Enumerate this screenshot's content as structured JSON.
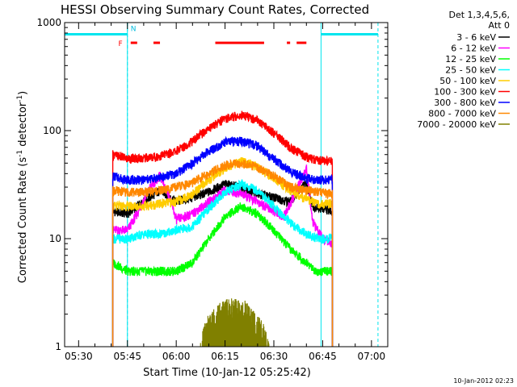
{
  "chart_data": {
    "type": "line",
    "title": "HESSI Observing Summary Count Rates, Corrected",
    "xlabel": "Start Time (10-Jan-12 05:25:42)",
    "ylabel_main": "Corrected Count Rate (s",
    "ylabel_sup1": "-1",
    "ylabel_mid": " detector",
    "ylabel_sup2": "-1",
    "ylabel_end": ")",
    "x_axis": {
      "start": "05:25:42",
      "end": "07:05:00",
      "ticks": [
        {
          "label": "05:30",
          "time": "05:30"
        },
        {
          "label": "05:45",
          "time": "05:45"
        },
        {
          "label": "06:00",
          "time": "06:00"
        },
        {
          "label": "06:15",
          "time": "06:15"
        },
        {
          "label": "06:30",
          "time": "06:30"
        },
        {
          "label": "06:45",
          "time": "06:45"
        },
        {
          "label": "07:00",
          "time": "07:00"
        }
      ]
    },
    "y_axis": {
      "scale": "log",
      "range": [
        1,
        1000
      ],
      "ticks": [
        {
          "label": "1",
          "value": 1
        },
        {
          "label": "10",
          "value": 10
        },
        {
          "label": "100",
          "value": 100
        },
        {
          "label": "1000",
          "value": 1000
        }
      ]
    },
    "legend_header": [
      "Det 1,3,4,5,6,",
      "Att 0"
    ],
    "legend_position": "right, outside plot",
    "series": [
      {
        "name": "3 - 6 keV",
        "color": "#000000",
        "points": [
          [
            "05:40:30",
            18
          ],
          [
            "05:45",
            17
          ],
          [
            "05:50",
            22
          ],
          [
            "05:55",
            28
          ],
          [
            "06:00",
            22
          ],
          [
            "06:05",
            24
          ],
          [
            "06:10",
            27
          ],
          [
            "06:15",
            32
          ],
          [
            "06:20",
            30
          ],
          [
            "06:25",
            26
          ],
          [
            "06:30",
            24
          ],
          [
            "06:35",
            22
          ],
          [
            "06:40",
            33
          ],
          [
            "06:42",
            20
          ],
          [
            "06:48",
            18
          ]
        ]
      },
      {
        "name": "6 - 12 keV",
        "color": "#ff00ff",
        "points": [
          [
            "05:40:30",
            12
          ],
          [
            "05:45",
            12
          ],
          [
            "05:48",
            17
          ],
          [
            "05:52",
            30
          ],
          [
            "05:55",
            38
          ],
          [
            "05:58",
            24
          ],
          [
            "06:00",
            15
          ],
          [
            "06:05",
            17
          ],
          [
            "06:10",
            22
          ],
          [
            "06:15",
            28
          ],
          [
            "06:20",
            26
          ],
          [
            "06:25",
            22
          ],
          [
            "06:30",
            18
          ],
          [
            "06:33",
            16
          ],
          [
            "06:36",
            24
          ],
          [
            "06:40",
            45
          ],
          [
            "06:42",
            14
          ],
          [
            "06:45",
            10
          ],
          [
            "06:48",
            9
          ]
        ]
      },
      {
        "name": "12 - 25 keV",
        "color": "#00ff00",
        "points": [
          [
            "05:40:30",
            6
          ],
          [
            "05:45",
            5
          ],
          [
            "05:50",
            5
          ],
          [
            "05:55",
            5
          ],
          [
            "06:00",
            5
          ],
          [
            "06:05",
            6
          ],
          [
            "06:10",
            10
          ],
          [
            "06:15",
            16
          ],
          [
            "06:20",
            20
          ],
          [
            "06:25",
            17
          ],
          [
            "06:30",
            12
          ],
          [
            "06:35",
            8
          ],
          [
            "06:40",
            6
          ],
          [
            "06:43",
            5
          ],
          [
            "06:48",
            5
          ]
        ]
      },
      {
        "name": "25 - 50 keV",
        "color": "#00ffff",
        "points": [
          [
            "05:40:30",
            10
          ],
          [
            "05:45",
            10
          ],
          [
            "05:50",
            11
          ],
          [
            "05:55",
            11
          ],
          [
            "06:00",
            12
          ],
          [
            "06:05",
            13
          ],
          [
            "06:10",
            19
          ],
          [
            "06:15",
            27
          ],
          [
            "06:20",
            32
          ],
          [
            "06:25",
            28
          ],
          [
            "06:30",
            20
          ],
          [
            "06:35",
            14
          ],
          [
            "06:40",
            11
          ],
          [
            "06:44",
            10
          ],
          [
            "06:48",
            10
          ]
        ]
      },
      {
        "name": "50 - 100 keV",
        "color": "#ffcc00",
        "points": [
          [
            "05:40:30",
            20
          ],
          [
            "05:45",
            20
          ],
          [
            "05:50",
            20
          ],
          [
            "05:55",
            21
          ],
          [
            "06:00",
            22
          ],
          [
            "06:05",
            26
          ],
          [
            "06:10",
            35
          ],
          [
            "06:15",
            45
          ],
          [
            "06:20",
            52
          ],
          [
            "06:25",
            46
          ],
          [
            "06:30",
            36
          ],
          [
            "06:35",
            28
          ],
          [
            "06:40",
            23
          ],
          [
            "06:44",
            21
          ],
          [
            "06:48",
            21
          ]
        ]
      },
      {
        "name": "100 - 300 keV",
        "color": "#ff0000",
        "points": [
          [
            "05:40:30",
            60
          ],
          [
            "05:45",
            55
          ],
          [
            "05:50",
            56
          ],
          [
            "05:55",
            58
          ],
          [
            "06:00",
            65
          ],
          [
            "06:05",
            80
          ],
          [
            "06:10",
            105
          ],
          [
            "06:15",
            130
          ],
          [
            "06:20",
            140
          ],
          [
            "06:25",
            125
          ],
          [
            "06:30",
            95
          ],
          [
            "06:35",
            70
          ],
          [
            "06:40",
            57
          ],
          [
            "06:44",
            53
          ],
          [
            "06:48",
            52
          ]
        ]
      },
      {
        "name": "300 - 800 keV",
        "color": "#0000ff",
        "points": [
          [
            "05:40:30",
            38
          ],
          [
            "05:45",
            35
          ],
          [
            "05:50",
            35
          ],
          [
            "05:55",
            37
          ],
          [
            "06:00",
            40
          ],
          [
            "06:05",
            50
          ],
          [
            "06:10",
            65
          ],
          [
            "06:15",
            78
          ],
          [
            "06:20",
            80
          ],
          [
            "06:25",
            72
          ],
          [
            "06:30",
            55
          ],
          [
            "06:35",
            42
          ],
          [
            "06:40",
            36
          ],
          [
            "06:44",
            35
          ],
          [
            "06:48",
            35
          ]
        ]
      },
      {
        "name": "800 - 7000 keV",
        "color": "#ff8800",
        "points": [
          [
            "05:40:30",
            28
          ],
          [
            "05:45",
            27
          ],
          [
            "05:50",
            27
          ],
          [
            "05:55",
            28
          ],
          [
            "06:00",
            30
          ],
          [
            "06:05",
            33
          ],
          [
            "06:10",
            40
          ],
          [
            "06:15",
            48
          ],
          [
            "06:20",
            50
          ],
          [
            "06:25",
            46
          ],
          [
            "06:30",
            38
          ],
          [
            "06:35",
            30
          ],
          [
            "06:40",
            28
          ],
          [
            "06:44",
            27
          ],
          [
            "06:48",
            26
          ]
        ]
      },
      {
        "name": "7000 - 20000 keV",
        "color": "#808000",
        "points": [
          [
            "06:07",
            1.0
          ],
          [
            "06:09",
            1.8
          ],
          [
            "06:12",
            2.4
          ],
          [
            "06:15",
            2.8
          ],
          [
            "06:18",
            2.8
          ],
          [
            "06:21",
            2.7
          ],
          [
            "06:24",
            2.2
          ],
          [
            "06:27",
            1.6
          ],
          [
            "06:29",
            1.0
          ]
        ]
      }
    ],
    "annotations": {
      "flag_label_f": "F",
      "flag_label_n": "N",
      "flag_value": 650,
      "night_value": 780,
      "night_bars": [
        [
          "05:25:42",
          "05:45"
        ],
        [
          "06:44:30",
          "07:02"
        ]
      ],
      "flare_bars": [
        [
          "05:46",
          "05:48"
        ],
        [
          "05:53",
          "05:55"
        ],
        [
          "06:12",
          "06:27"
        ],
        [
          "06:34",
          "06:35"
        ],
        [
          "06:37",
          "06:40"
        ]
      ],
      "vertical_lines_solid": [
        "05:45",
        "06:44:30"
      ],
      "vertical_lines_dashed": [
        "05:45",
        "07:02"
      ]
    },
    "grid": false
  },
  "timestamp": "10-Jan-2012 02:23"
}
